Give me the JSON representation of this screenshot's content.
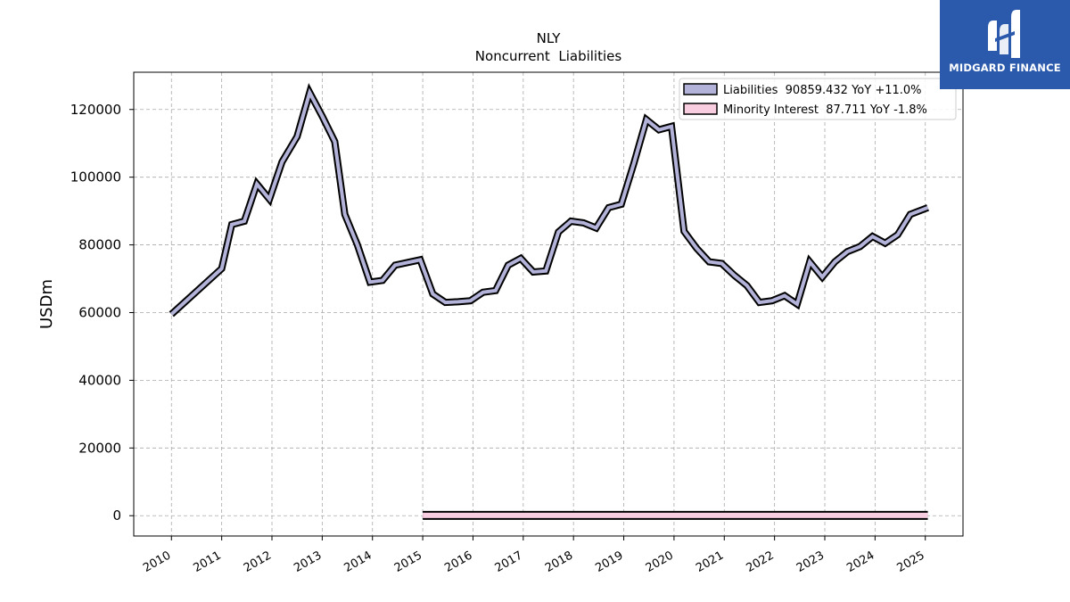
{
  "chart_data": {
    "type": "line",
    "title": "NLY",
    "subtitle": "Noncurrent  Liabilities",
    "ylabel": "USDm",
    "xlabel": "",
    "ylim": [
      -6000,
      131000
    ],
    "xlim": [
      2009.25,
      2025.75
    ],
    "yticks": [
      0,
      20000,
      40000,
      60000,
      80000,
      100000,
      120000
    ],
    "ytick_labels": [
      "0",
      "20000",
      "40000",
      "60000",
      "80000",
      "100000",
      "120000"
    ],
    "xticks": [
      2010,
      2011,
      2012,
      2013,
      2014,
      2015,
      2016,
      2017,
      2018,
      2019,
      2020,
      2021,
      2022,
      2023,
      2024,
      2025
    ],
    "xtick_labels": [
      "2010",
      "2011",
      "2012",
      "2013",
      "2014",
      "2015",
      "2016",
      "2017",
      "2018",
      "2019",
      "2020",
      "2021",
      "2022",
      "2023",
      "2024",
      "2025"
    ],
    "grid": true,
    "legend_position": "top-right",
    "series": [
      {
        "name": "Liabilities",
        "legend_label": "Liabilities  90859.432 YoY +11.0%",
        "fill_color": "#b3b3d9",
        "x": [
          2010.0,
          2011.0,
          2011.2,
          2011.45,
          2011.7,
          2011.95,
          2012.2,
          2012.5,
          2012.75,
          2013.0,
          2013.25,
          2013.45,
          2013.7,
          2013.95,
          2014.2,
          2014.45,
          2014.7,
          2014.95,
          2015.2,
          2015.45,
          2015.7,
          2015.95,
          2016.2,
          2016.45,
          2016.7,
          2016.95,
          2017.2,
          2017.45,
          2017.7,
          2017.95,
          2018.2,
          2018.45,
          2018.7,
          2018.95,
          2019.2,
          2019.45,
          2019.7,
          2019.95,
          2020.2,
          2020.45,
          2020.7,
          2020.95,
          2021.2,
          2021.45,
          2021.7,
          2021.95,
          2022.2,
          2022.45,
          2022.7,
          2022.95,
          2023.2,
          2023.45,
          2023.7,
          2023.95,
          2024.2,
          2024.45,
          2024.7,
          2025.05
        ],
        "values": [
          59500,
          73000,
          86000,
          87000,
          98000,
          93500,
          104500,
          112000,
          125000,
          118000,
          110500,
          89000,
          80000,
          69000,
          69500,
          74000,
          74800,
          75600,
          65500,
          63000,
          63200,
          63500,
          66000,
          66500,
          74000,
          76000,
          72000,
          72300,
          83800,
          87000,
          86500,
          85000,
          91000,
          92000,
          104000,
          117000,
          114000,
          115000,
          84000,
          79000,
          75000,
          74500,
          71000,
          68000,
          63000,
          63500,
          65000,
          62500,
          75000,
          70500,
          75000,
          78000,
          79500,
          82500,
          80500,
          83000,
          89000,
          91000
        ]
      },
      {
        "name": "Minority Interest",
        "legend_label": "Minority Interest  87.711 YoY -1.8%",
        "fill_color": "#f9cde0",
        "x": [
          2015.0,
          2016.0,
          2017.0,
          2018.0,
          2019.0,
          2020.0,
          2021.0,
          2022.0,
          2023.0,
          2024.0,
          2025.05
        ],
        "values": [
          90,
          90,
          91,
          91,
          92,
          93,
          94,
          95,
          96,
          89,
          87.711
        ]
      }
    ]
  },
  "logo": {
    "text": "MIDGARD FINANCE"
  }
}
